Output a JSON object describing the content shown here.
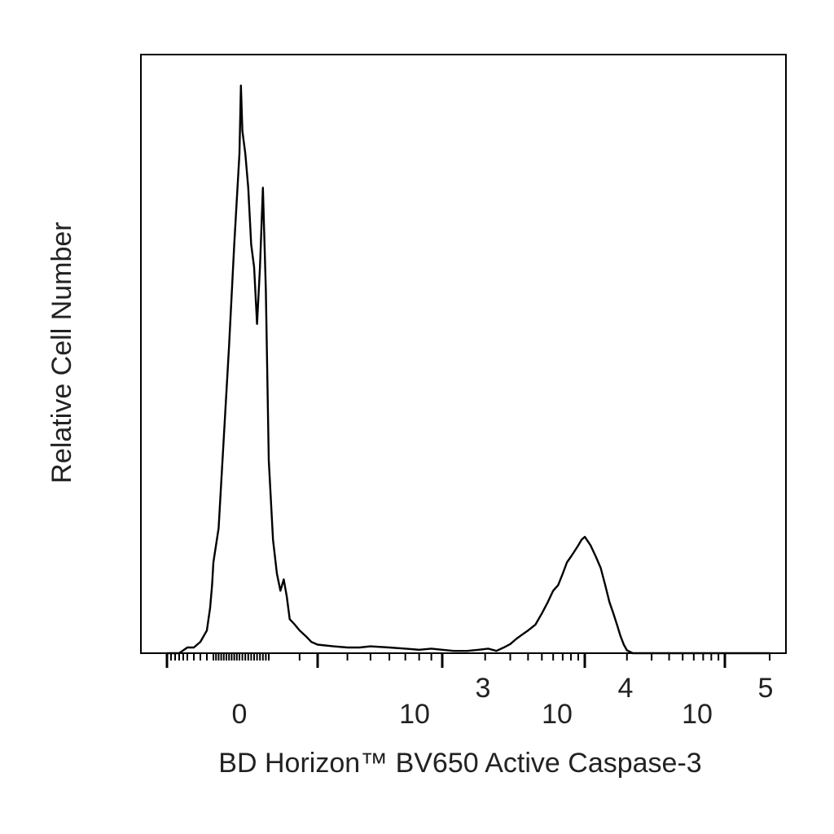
{
  "chart_data": {
    "type": "histogram",
    "xlabel": "BD Horizon™ BV650 Active Caspase-3",
    "ylabel": "Relative Cell Number",
    "x_scale": "biexponential (log)",
    "x_tick_labels": [
      {
        "value": 0,
        "base": "0",
        "exp": ""
      },
      {
        "value": 1000,
        "base": "10",
        "exp": "3"
      },
      {
        "value": 10000,
        "base": "10",
        "exp": "4"
      },
      {
        "value": 100000,
        "base": "10",
        "exp": "5"
      }
    ],
    "grid": false,
    "legend": "none",
    "line_color": "#000000",
    "series": [
      {
        "x": [
          -1000,
          -700,
          -500,
          -400,
          -300,
          -250,
          -200,
          -150,
          -120,
          -100,
          -80,
          -60,
          -40,
          -20,
          0,
          5,
          10,
          20,
          30,
          40,
          50,
          60,
          70,
          80,
          90,
          100,
          110,
          120,
          130,
          140,
          150,
          160,
          180,
          200,
          230,
          260,
          300,
          350,
          400,
          450,
          500,
          600,
          700,
          800,
          900,
          1000,
          1200,
          1500,
          1800,
          2100,
          2400,
          2700,
          3000,
          3300,
          3600,
          4000,
          4500,
          5000,
          5500,
          6000,
          6500,
          7000,
          7500,
          8000,
          8500,
          9000,
          9500,
          10000,
          11000,
          12000,
          13000,
          14000,
          15000,
          16000,
          17000,
          18000,
          19000,
          20000,
          22000,
          25000,
          30000,
          40000,
          60000,
          100000,
          200000
        ],
        "y": [
          0,
          0,
          1,
          1,
          2,
          3,
          4,
          8,
          12,
          16,
          22,
          38,
          54,
          72,
          88,
          100,
          92,
          88,
          82,
          72,
          68,
          58,
          68,
          82,
          64,
          34,
          20,
          14,
          11,
          13,
          10,
          6,
          5,
          4,
          3,
          2,
          1.5,
          1.2,
          1,
          1,
          1.2,
          1,
          0.8,
          0.6,
          0.8,
          0.6,
          0.4,
          0.4,
          0.6,
          0.8,
          0.4,
          1,
          1.6,
          2.5,
          3.2,
          4,
          5,
          7,
          9,
          11,
          12,
          14,
          16,
          17,
          18,
          19,
          20,
          20.5,
          19,
          17,
          15,
          12,
          9,
          7,
          5,
          3,
          1.5,
          0.5,
          0,
          0,
          0,
          0,
          0,
          0,
          0
        ]
      }
    ]
  }
}
